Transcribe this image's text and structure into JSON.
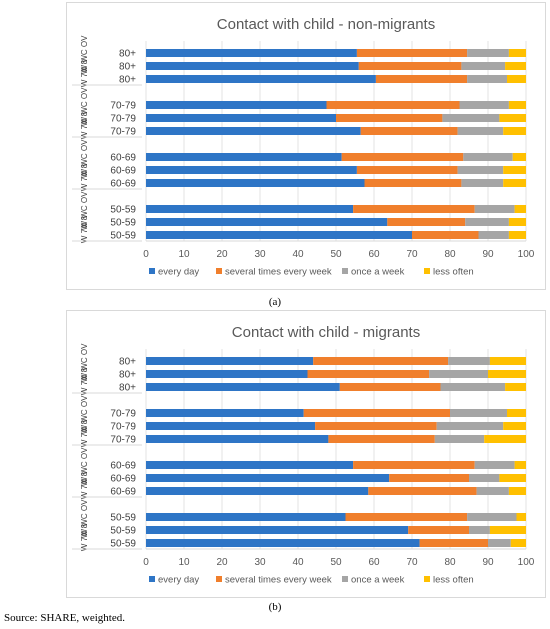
{
  "figure": {
    "source_note": "Source: SHARE, weighted."
  },
  "legend_colors": {
    "every day": "#2e75c6",
    "several times every week": "#f07f2c",
    "once a week": "#a5a5a5",
    "less often": "#ffc000"
  },
  "chart_data": [
    {
      "type": "bar",
      "orientation": "horizontal",
      "stacked": true,
      "panel_label": "(a)",
      "title": "Contact with child - non-migrants",
      "groups": [
        {
          "age": "80+",
          "rows": [
            {
              "label": "80+",
              "wave": "W WC OV",
              "values": [
                55.5,
                29,
                11,
                4.5
              ]
            },
            {
              "label": "80+",
              "wave": "W 8",
              "values": [
                56,
                27,
                11.5,
                5.5
              ]
            },
            {
              "label": "80+",
              "wave": "W 7",
              "values": [
                60.5,
                24,
                10.5,
                5
              ]
            }
          ]
        },
        {
          "age": "70-79",
          "rows": [
            {
              "label": "70-79",
              "wave": "W WC OV",
              "values": [
                47.5,
                35,
                13,
                4.5
              ]
            },
            {
              "label": "70-79",
              "wave": "W 8",
              "values": [
                50,
                28,
                15,
                7
              ]
            },
            {
              "label": "70-79",
              "wave": "W 7",
              "values": [
                56.5,
                25.5,
                12,
                6
              ]
            }
          ]
        },
        {
          "age": "60-69",
          "rows": [
            {
              "label": "60-69",
              "wave": "W WC OV",
              "values": [
                51.5,
                32,
                13,
                3.5
              ]
            },
            {
              "label": "60-69",
              "wave": "W 8",
              "values": [
                55.5,
                26.5,
                12,
                6
              ]
            },
            {
              "label": "60-69",
              "wave": "W 7",
              "values": [
                57.5,
                25.5,
                11,
                6
              ]
            }
          ]
        },
        {
          "age": "50-59",
          "rows": [
            {
              "label": "50-59",
              "wave": "W WC OV",
              "values": [
                54.5,
                32,
                10.5,
                3
              ]
            },
            {
              "label": "50-59",
              "wave": "W 8",
              "values": [
                63.5,
                20.5,
                11.5,
                4.5
              ]
            },
            {
              "label": "50-59",
              "wave": "W 7",
              "values": [
                70,
                17.5,
                8,
                4.5
              ]
            }
          ]
        }
      ],
      "xlim": [
        0,
        100
      ],
      "xticks": [
        0,
        10,
        20,
        30,
        40,
        50,
        60,
        70,
        80,
        90,
        100
      ],
      "series": [
        {
          "name": "every day"
        },
        {
          "name": "several times every week"
        },
        {
          "name": "once a week"
        },
        {
          "name": "less often"
        }
      ],
      "legend_position": "bottom",
      "grid": true
    },
    {
      "type": "bar",
      "orientation": "horizontal",
      "stacked": true,
      "panel_label": "(b)",
      "title": "Contact with child - migrants",
      "groups": [
        {
          "age": "80+",
          "rows": [
            {
              "label": "80+",
              "wave": "W WC OV",
              "values": [
                44,
                35.5,
                11,
                9.5
              ]
            },
            {
              "label": "80+",
              "wave": "W 8",
              "values": [
                42.5,
                32,
                15.5,
                10
              ]
            },
            {
              "label": "80+",
              "wave": "W 7",
              "values": [
                51,
                26.5,
                17,
                5.5
              ]
            }
          ]
        },
        {
          "age": "70-79",
          "rows": [
            {
              "label": "70-79",
              "wave": "W WC OV",
              "values": [
                41.5,
                38.5,
                15,
                5
              ]
            },
            {
              "label": "70-79",
              "wave": "W 8",
              "values": [
                44.5,
                32,
                17.5,
                6
              ]
            },
            {
              "label": "70-79",
              "wave": "W 7",
              "values": [
                48,
                28,
                13,
                11
              ]
            }
          ]
        },
        {
          "age": "60-69",
          "rows": [
            {
              "label": "60-69",
              "wave": "W WC OV",
              "values": [
                54.5,
                32,
                10.5,
                3
              ]
            },
            {
              "label": "60-69",
              "wave": "W 8",
              "values": [
                64,
                21,
                8,
                7
              ]
            },
            {
              "label": "60-69",
              "wave": "W 7",
              "values": [
                58.5,
                28.5,
                8.5,
                4.5
              ]
            }
          ]
        },
        {
          "age": "50-59",
          "rows": [
            {
              "label": "50-59",
              "wave": "W WC OV",
              "values": [
                52.5,
                32,
                13,
                2.5
              ]
            },
            {
              "label": "50-59",
              "wave": "W 8",
              "values": [
                69,
                16,
                5.5,
                9.5
              ]
            },
            {
              "label": "50-59",
              "wave": "W 7",
              "values": [
                72,
                18,
                6,
                4
              ]
            }
          ]
        }
      ],
      "xlim": [
        0,
        100
      ],
      "xticks": [
        0,
        10,
        20,
        30,
        40,
        50,
        60,
        70,
        80,
        90,
        100
      ],
      "series": [
        {
          "name": "every day"
        },
        {
          "name": "several times every week"
        },
        {
          "name": "once a week"
        },
        {
          "name": "less often"
        }
      ],
      "legend_position": "bottom",
      "grid": true
    }
  ]
}
